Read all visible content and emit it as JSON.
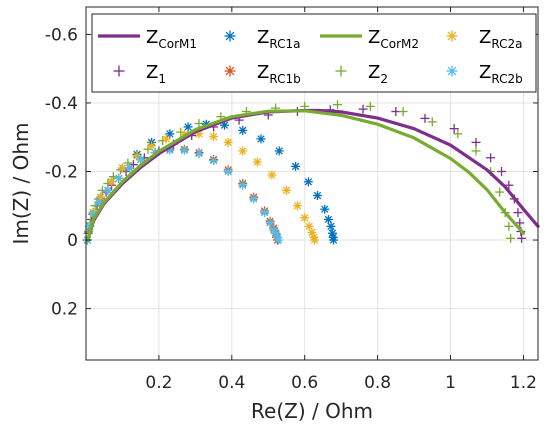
{
  "chart_data": {
    "type": "scatter",
    "xlabel": "Re(Z) / Ohm",
    "ylabel": "Im(Z) / Ohm",
    "xlim": [
      0,
      1.24
    ],
    "ylim": [
      0.35,
      -0.68
    ],
    "y_reversed": true,
    "grid": true,
    "legend_position": "top",
    "x_ticks": [
      0.2,
      0.4,
      0.6,
      0.8,
      1,
      1.2
    ],
    "x_tick_labels": [
      "0.2",
      "0.4",
      "0.6",
      "0.8",
      "1",
      "1.2"
    ],
    "y_ticks": [
      -0.6,
      -0.4,
      -0.2,
      0,
      0.2
    ],
    "y_tick_labels": [
      "-0.6",
      "-0.4",
      "-0.2",
      "0",
      "0.2"
    ],
    "series": [
      {
        "name": "Z",
        "sub": "CorM1",
        "kind": "line",
        "color": "#7E2F8E",
        "width": 3.2,
        "x": [
          0.005,
          0.02,
          0.05,
          0.1,
          0.15,
          0.2,
          0.3,
          0.4,
          0.5,
          0.6,
          0.64,
          0.7,
          0.8,
          0.9,
          1.0,
          1.1,
          1.15,
          1.2,
          1.24
        ],
        "y": [
          0.0,
          -0.055,
          -0.107,
          -0.165,
          -0.212,
          -0.252,
          -0.316,
          -0.356,
          -0.374,
          -0.378,
          -0.378,
          -0.374,
          -0.356,
          -0.325,
          -0.277,
          -0.205,
          -0.155,
          -0.09,
          -0.04
        ]
      },
      {
        "name": "Z",
        "sub": "CorM2",
        "kind": "line",
        "color": "#77AC30",
        "width": 3.2,
        "x": [
          0.005,
          0.02,
          0.05,
          0.1,
          0.15,
          0.2,
          0.3,
          0.4,
          0.5,
          0.6,
          0.7,
          0.8,
          0.9,
          1.0,
          1.05,
          1.1,
          1.15,
          1.2
        ],
        "y": [
          0.0,
          -0.06,
          -0.11,
          -0.17,
          -0.218,
          -0.259,
          -0.322,
          -0.36,
          -0.376,
          -0.377,
          -0.364,
          -0.338,
          -0.298,
          -0.238,
          -0.198,
          -0.147,
          -0.08,
          -0.02
        ]
      },
      {
        "name": "Z",
        "sub": "1",
        "kind": "plus",
        "color": "#7E2F8E",
        "x": [
          0.003,
          0.006,
          0.01,
          0.015,
          0.02,
          0.03,
          0.04,
          0.055,
          0.07,
          0.09,
          0.11,
          0.13,
          0.16,
          0.2,
          0.24,
          0.29,
          0.35,
          0.42,
          0.5,
          0.58,
          0.67,
          0.76,
          0.85,
          0.93,
          1.01,
          1.07,
          1.11,
          1.14,
          1.16,
          1.175,
          1.185,
          1.19,
          1.193,
          1.195
        ],
        "y": [
          0.0,
          -0.02,
          -0.04,
          -0.06,
          -0.08,
          -0.1,
          -0.12,
          -0.14,
          -0.16,
          -0.18,
          -0.2,
          -0.22,
          -0.24,
          -0.26,
          -0.28,
          -0.305,
          -0.33,
          -0.35,
          -0.365,
          -0.375,
          -0.38,
          -0.382,
          -0.375,
          -0.355,
          -0.325,
          -0.285,
          -0.24,
          -0.2,
          -0.16,
          -0.12,
          -0.08,
          -0.05,
          -0.025,
          -0.005
        ]
      },
      {
        "name": "Z",
        "sub": "2",
        "kind": "plus",
        "color": "#77AC30",
        "x": [
          0.003,
          0.007,
          0.012,
          0.018,
          0.025,
          0.034,
          0.045,
          0.06,
          0.075,
          0.095,
          0.115,
          0.14,
          0.17,
          0.21,
          0.26,
          0.31,
          0.37,
          0.44,
          0.52,
          0.6,
          0.69,
          0.78,
          0.87,
          0.95,
          1.02,
          1.07,
          1.11,
          1.135,
          1.15,
          1.16,
          1.165
        ],
        "y": [
          0.0,
          -0.025,
          -0.05,
          -0.075,
          -0.1,
          -0.12,
          -0.145,
          -0.165,
          -0.185,
          -0.205,
          -0.225,
          -0.245,
          -0.265,
          -0.29,
          -0.315,
          -0.34,
          -0.36,
          -0.375,
          -0.385,
          -0.39,
          -0.395,
          -0.39,
          -0.375,
          -0.345,
          -0.31,
          -0.26,
          -0.2,
          -0.14,
          -0.08,
          -0.04,
          -0.005
        ]
      },
      {
        "name": "Z",
        "sub": "RC1a",
        "kind": "star",
        "color": "#0072BD",
        "x": [
          0.004,
          0.01,
          0.02,
          0.04,
          0.07,
          0.1,
          0.14,
          0.18,
          0.23,
          0.28,
          0.33,
          0.38,
          0.43,
          0.48,
          0.53,
          0.575,
          0.61,
          0.635,
          0.655,
          0.665,
          0.672,
          0.676,
          0.678,
          0.679
        ],
        "y": [
          0.0,
          -0.04,
          -0.08,
          -0.125,
          -0.17,
          -0.21,
          -0.25,
          -0.285,
          -0.31,
          -0.33,
          -0.338,
          -0.335,
          -0.32,
          -0.295,
          -0.26,
          -0.215,
          -0.17,
          -0.13,
          -0.09,
          -0.06,
          -0.04,
          -0.02,
          -0.008,
          0.0
        ]
      },
      {
        "name": "Z",
        "sub": "RC1b",
        "kind": "star",
        "color": "#D95319",
        "x": [
          0.004,
          0.01,
          0.02,
          0.04,
          0.06,
          0.09,
          0.12,
          0.15,
          0.19,
          0.23,
          0.27,
          0.31,
          0.35,
          0.39,
          0.43,
          0.46,
          0.49,
          0.505,
          0.515,
          0.52,
          0.523,
          0.525
        ],
        "y": [
          0.0,
          -0.04,
          -0.075,
          -0.11,
          -0.145,
          -0.18,
          -0.21,
          -0.235,
          -0.255,
          -0.265,
          -0.265,
          -0.255,
          -0.235,
          -0.205,
          -0.165,
          -0.125,
          -0.085,
          -0.055,
          -0.035,
          -0.02,
          -0.008,
          0.0
        ]
      },
      {
        "name": "Z",
        "sub": "RC2a",
        "kind": "star",
        "color": "#EDB120",
        "x": [
          0.004,
          0.01,
          0.02,
          0.04,
          0.07,
          0.1,
          0.14,
          0.18,
          0.22,
          0.27,
          0.31,
          0.35,
          0.39,
          0.43,
          0.47,
          0.51,
          0.55,
          0.58,
          0.6,
          0.612,
          0.62,
          0.625,
          0.627
        ],
        "y": [
          0.0,
          -0.04,
          -0.08,
          -0.125,
          -0.17,
          -0.21,
          -0.245,
          -0.275,
          -0.295,
          -0.308,
          -0.31,
          -0.302,
          -0.285,
          -0.26,
          -0.228,
          -0.19,
          -0.145,
          -0.1,
          -0.065,
          -0.04,
          -0.022,
          -0.008,
          0.0
        ]
      },
      {
        "name": "Z",
        "sub": "RC2b",
        "kind": "star",
        "color": "#4DBEEE",
        "x": [
          0.004,
          0.01,
          0.02,
          0.035,
          0.06,
          0.09,
          0.12,
          0.15,
          0.19,
          0.23,
          0.27,
          0.31,
          0.35,
          0.39,
          0.43,
          0.46,
          0.49,
          0.505,
          0.515,
          0.522,
          0.526,
          0.528
        ],
        "y": [
          0.0,
          -0.04,
          -0.075,
          -0.11,
          -0.145,
          -0.18,
          -0.21,
          -0.235,
          -0.255,
          -0.262,
          -0.262,
          -0.252,
          -0.232,
          -0.2,
          -0.16,
          -0.12,
          -0.08,
          -0.05,
          -0.03,
          -0.018,
          -0.007,
          0.0
        ]
      }
    ],
    "legend_order": [
      0,
      4,
      1,
      6,
      2,
      5,
      3,
      7
    ]
  }
}
